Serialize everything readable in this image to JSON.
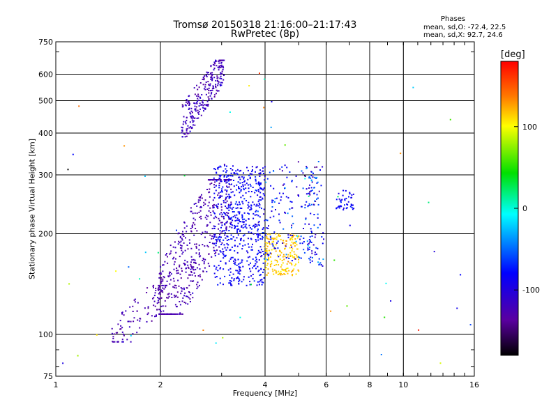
{
  "chart_data": {
    "type": "scatter",
    "title": "Tromsø 20150318 21:16:00–21:17:43",
    "subtitle": "RwPretec (8p)",
    "xlabel": "Frequency [MHz]",
    "ylabel": "Stationary phase Virtual Height [km]",
    "x_scale": "log",
    "y_scale": "log",
    "xlim": [
      1,
      16
    ],
    "ylim": [
      75,
      750
    ],
    "x_ticks": [
      1,
      2,
      4,
      6,
      8,
      10,
      16
    ],
    "x_tick_labels": [
      "1",
      "2",
      "4",
      "6",
      "8",
      "10",
      "16"
    ],
    "y_ticks": [
      75,
      100,
      200,
      300,
      400,
      500,
      600,
      750
    ],
    "y_tick_labels": [
      "75",
      "100",
      "200",
      "300",
      "400",
      "500",
      "600",
      "750"
    ],
    "grid": true,
    "stats": {
      "heading": "Phases",
      "o_mode": "mean, sd,O: -72.4, 22.5",
      "x_mode": "mean, sd,X:  92.7, 24.6"
    },
    "colorbar": {
      "label": "[deg]",
      "range": [
        -180,
        180
      ],
      "ticks": [
        -100,
        0,
        100
      ],
      "tick_labels": [
        "-100",
        "0",
        "100"
      ],
      "colormap": "rainbow"
    },
    "clusters": [
      {
        "fx": [
          2.3,
          3.05
        ],
        "hy": [
          390,
          660
        ],
        "phase": -120,
        "phase_sd": 10,
        "n": 260,
        "shape": "band-up"
      },
      {
        "fx": [
          1.98,
          3.2
        ],
        "hy": [
          115,
          290
        ],
        "phase": -125,
        "phase_sd": 8,
        "n": 520,
        "shape": "diag"
      },
      {
        "fx": [
          1.45,
          2.1
        ],
        "hy": [
          95,
          140
        ],
        "phase": -125,
        "phase_sd": 8,
        "n": 110,
        "shape": "diag"
      },
      {
        "fx": [
          2.85,
          4.0
        ],
        "hy": [
          140,
          320
        ],
        "phase": -83,
        "phase_sd": 9,
        "n": 560,
        "shape": "box"
      },
      {
        "fx": [
          4.0,
          5.0
        ],
        "hy": [
          150,
          200
        ],
        "phase": 115,
        "phase_sd": 8,
        "n": 190,
        "shape": "box"
      },
      {
        "fx": [
          3.8,
          5.9
        ],
        "hy": [
          165,
          330
        ],
        "phase": -80,
        "phase_sd": 25,
        "n": 180,
        "shape": "box"
      },
      {
        "fx": [
          5.2,
          5.7
        ],
        "hy": [
          240,
          320
        ],
        "phase": -80,
        "phase_sd": 40,
        "n": 40,
        "shape": "box"
      },
      {
        "fx": [
          6.4,
          7.2
        ],
        "hy": [
          235,
          270
        ],
        "phase": -85,
        "phase_sd": 8,
        "n": 45,
        "shape": "box"
      },
      {
        "fx": [
          5.3,
          5.9
        ],
        "hy": [
          160,
          200
        ],
        "phase": -75,
        "phase_sd": 25,
        "n": 30,
        "shape": "box"
      },
      {
        "fx": [
          1.02,
          16
        ],
        "hy": [
          80,
          650
        ],
        "phase": 20,
        "phase_sd": 100,
        "n": 55,
        "shape": "box"
      }
    ]
  }
}
